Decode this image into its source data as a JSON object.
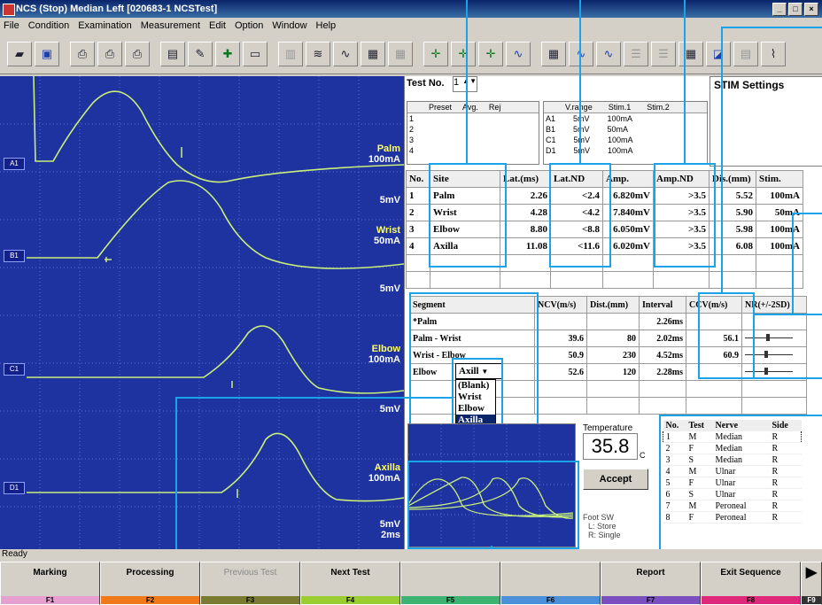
{
  "window": {
    "title": "NCS (Stop) Median Left [020683-1 NCSTest]"
  },
  "menu": [
    "File",
    "Condition",
    "Examination",
    "Measurement",
    "Edit",
    "Option",
    "Window",
    "Help"
  ],
  "toolbar_icons": [
    "open-icon",
    "save-icon",
    "print-icon",
    "print-preview-icon",
    "print-icon",
    "protocol-icon",
    "edit-icon",
    "copy-icon",
    "screen-icon",
    "report-icon",
    "list-icon",
    "wave-icon",
    "bar-icon",
    "grid-icon",
    "green-cursor-icon",
    "marker-icon",
    "marker-icon",
    "marker-icon",
    "wave-compare-icon",
    "table-icon",
    "wave-icon",
    "wave-icon",
    "list-view-icon",
    "list-view-icon",
    "grid-view-icon",
    "chart-icon",
    "layout-icon",
    "wave-small-icon"
  ],
  "waveform": {
    "channels": [
      {
        "id": "A1",
        "site": "Palm",
        "stim": "100mA",
        "scale": "5mV"
      },
      {
        "id": "B1",
        "site": "Wrist",
        "stim": "50mA",
        "scale": "5mV"
      },
      {
        "id": "C1",
        "site": "Elbow",
        "stim": "100mA",
        "scale": "5mV"
      },
      {
        "id": "D1",
        "site": "Axilla",
        "stim": "100mA",
        "scale": "5mV",
        "time": "2ms"
      }
    ]
  },
  "test": {
    "label": "Test No.",
    "value": "1"
  },
  "preset": {
    "headers": [
      "Preset",
      "Avg.",
      "Rej"
    ],
    "rows": [
      "1",
      "2",
      "3",
      "4"
    ]
  },
  "vrange": {
    "headers": [
      "V.range",
      "Stim.1",
      "Stim.2"
    ],
    "rows": [
      [
        "A1",
        "5mV",
        "100mA"
      ],
      [
        "B1",
        "5mV",
        "50mA"
      ],
      [
        "C1",
        "5mV",
        "100mA"
      ],
      [
        "D1",
        "5mV",
        "100mA"
      ]
    ]
  },
  "stim_settings": {
    "title": "STIM Settings"
  },
  "main_table": {
    "headers": [
      "No.",
      "Site",
      "Lat.(ms)",
      "Lat.ND",
      "Amp.",
      "Amp.ND",
      "Dis.(mm)",
      "Stim."
    ],
    "rows": [
      [
        "1",
        "Palm",
        "2.26",
        "<2.4",
        "6.820mV",
        ">3.5",
        "5.52",
        "100mA"
      ],
      [
        "2",
        "Wrist",
        "4.28",
        "<4.2",
        "7.840mV",
        ">3.5",
        "5.90",
        "50mA"
      ],
      [
        "3",
        "Elbow",
        "8.80",
        "<8.8",
        "6.050mV",
        ">3.5",
        "5.98",
        "100mA"
      ],
      [
        "4",
        "Axilla",
        "11.08",
        "<11.6",
        "6.020mV",
        ">3.5",
        "6.08",
        "100mA"
      ]
    ]
  },
  "segment_table": {
    "headers": [
      "Segment",
      "NCV(m/s)",
      "Dist.(mm)",
      "Interval",
      "CCV(m/s)",
      "NR(+/-2SD)"
    ],
    "rows": [
      [
        "*Palm",
        "",
        "",
        "2.26ms",
        "",
        ""
      ],
      [
        "Palm - Wrist",
        "39.6",
        "80",
        "2.02ms",
        "56.1",
        ""
      ],
      [
        "Wrist - Elbow",
        "50.9",
        "230",
        "4.52ms",
        "60.9",
        ""
      ],
      [
        "Elbow",
        "52.6",
        "120",
        "2.28ms",
        "",
        ""
      ]
    ]
  },
  "dropdown": {
    "value": "Axill",
    "options": [
      "(Blank)",
      "Wrist",
      "Elbow",
      "Axilla"
    ],
    "selected": "Axilla"
  },
  "temperature": {
    "label": "Temperature",
    "value": "35.8",
    "unit": "C"
  },
  "accept": {
    "label": "Accept"
  },
  "footsw": {
    "title": "Foot SW",
    "l": "L: Store",
    "r": "R: Single"
  },
  "nerve_table": {
    "headers": [
      "No.",
      "Test",
      "Nerve",
      "Side"
    ],
    "rows": [
      [
        "1",
        "M",
        "Median",
        "R"
      ],
      [
        "2",
        "F",
        "Median",
        "R"
      ],
      [
        "3",
        "S",
        "Median",
        "R"
      ],
      [
        "4",
        "M",
        "Ulnar",
        "R"
      ],
      [
        "5",
        "F",
        "Ulnar",
        "R"
      ],
      [
        "6",
        "S",
        "Ulnar",
        "R"
      ],
      [
        "7",
        "M",
        "Peroneal",
        "R"
      ],
      [
        "8",
        "F",
        "Peroneal",
        "R"
      ]
    ]
  },
  "status": {
    "text": "Ready"
  },
  "fkeys": [
    {
      "label": "Marking",
      "key": "F1",
      "color": "#e6a0d0"
    },
    {
      "label": "Processing",
      "key": "F2",
      "color": "#f07a1a"
    },
    {
      "label": "Previous Test",
      "key": "F3",
      "color": "#7a7a30",
      "disabled": true
    },
    {
      "label": "Next Test",
      "key": "F4",
      "color": "#9acd32"
    },
    {
      "label": "",
      "key": "F5",
      "color": "#3cb371"
    },
    {
      "label": "",
      "key": "F6",
      "color": "#4a90d9"
    },
    {
      "label": "Report",
      "key": "F7",
      "color": "#7b4fc0"
    },
    {
      "label": "Exit Sequence",
      "key": "F8",
      "color": "#e0287a"
    },
    {
      "label": "▶",
      "key": "F9",
      "color": "#333333"
    }
  ]
}
